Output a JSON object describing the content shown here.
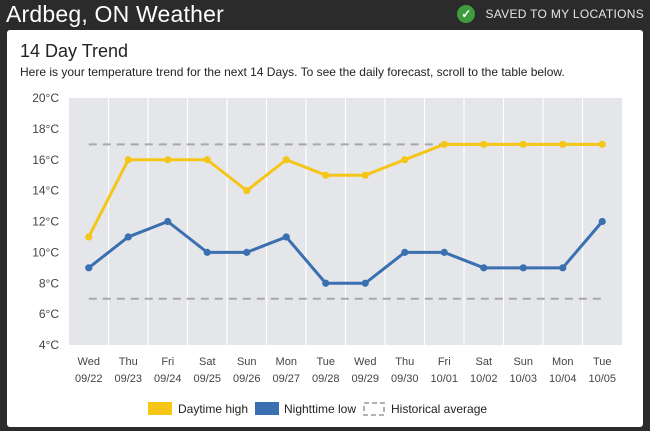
{
  "header": {
    "title": "Ardbeg, ON Weather",
    "saved_label": "SAVED TO MY LOCATIONS",
    "saved_icon": "checkmark-icon"
  },
  "card": {
    "title": "14 Day Trend",
    "subtitle": "Here is your temperature trend for the next 14 Days. To see the daily forecast, scroll to the table below."
  },
  "chart_data": {
    "type": "line",
    "categories": [
      {
        "day": "Wed",
        "date": "09/22"
      },
      {
        "day": "Thu",
        "date": "09/23"
      },
      {
        "day": "Fri",
        "date": "09/24"
      },
      {
        "day": "Sat",
        "date": "09/25"
      },
      {
        "day": "Sun",
        "date": "09/26"
      },
      {
        "day": "Mon",
        "date": "09/27"
      },
      {
        "day": "Tue",
        "date": "09/28"
      },
      {
        "day": "Wed",
        "date": "09/29"
      },
      {
        "day": "Thu",
        "date": "09/30"
      },
      {
        "day": "Fri",
        "date": "10/01"
      },
      {
        "day": "Sat",
        "date": "10/02"
      },
      {
        "day": "Sun",
        "date": "10/03"
      },
      {
        "day": "Mon",
        "date": "10/04"
      },
      {
        "day": "Tue",
        "date": "10/05"
      }
    ],
    "series": [
      {
        "name": "Daytime high",
        "color": "#f5c518",
        "values": [
          11,
          16,
          16,
          16,
          14,
          16,
          15,
          15,
          16,
          17,
          17,
          17,
          17,
          17
        ]
      },
      {
        "name": "Nighttime low",
        "color": "#3a6fb0",
        "values": [
          9,
          11,
          12,
          10,
          10,
          11,
          8,
          8,
          10,
          10,
          9,
          9,
          9,
          12
        ]
      }
    ],
    "historical_average": {
      "name": "Historical average",
      "color": "#a8a8a8",
      "high": 17,
      "low": 7
    },
    "y_ticks": [
      "20°C",
      "18°C",
      "16°C",
      "14°C",
      "12°C",
      "10°C",
      "8°C",
      "6°C",
      "4°C"
    ],
    "ylim": [
      4,
      20
    ],
    "grid": true,
    "legend_position": "bottom"
  }
}
